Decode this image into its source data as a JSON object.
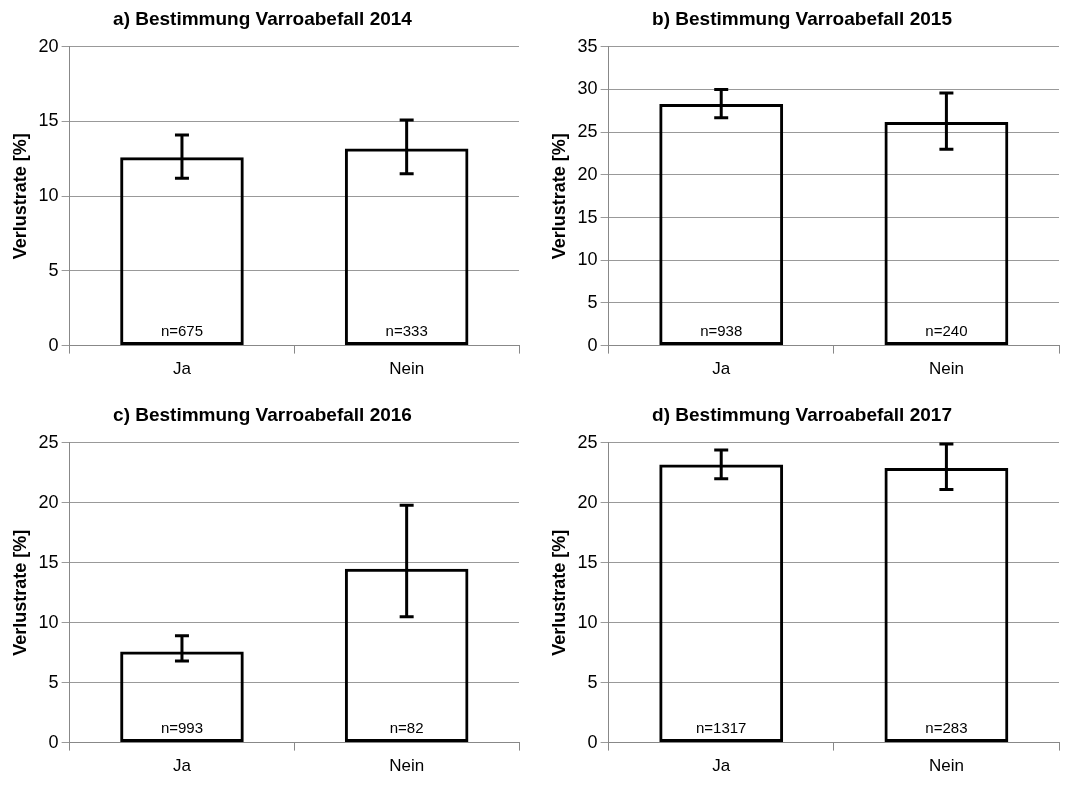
{
  "chart_data": [
    {
      "type": "bar",
      "title": "a) Bestimmung Varroabefall 2014",
      "ylabel": "Verlustrate [%]",
      "categories": [
        "Ja",
        "Nein"
      ],
      "values": [
        12.6,
        13.2
      ],
      "errors": [
        [
          11.2,
          14.1
        ],
        [
          11.5,
          15.1
        ]
      ],
      "color": "#000000",
      "ylim": [
        0,
        20
      ],
      "yticks": [
        0,
        5,
        10,
        15,
        20
      ],
      "grid": "y",
      "legend": false,
      "annotations": [
        {
          "text": "n=675",
          "x": "Ja",
          "y": 0
        },
        {
          "text": "n=333",
          "x": "Nein",
          "y": 0
        }
      ]
    },
    {
      "type": "bar",
      "title": "b) Bestimmung Varroabefall 2015",
      "ylabel": "Verlustrate [%]",
      "categories": [
        "Ja",
        "Nein"
      ],
      "values": [
        28.3,
        26.2
      ],
      "errors": [
        [
          26.7,
          30.0
        ],
        [
          23.0,
          29.6
        ]
      ],
      "color": "#000000",
      "ylim": [
        0,
        35
      ],
      "yticks": [
        0,
        5,
        10,
        15,
        20,
        25,
        30,
        35
      ],
      "grid": "y",
      "legend": false,
      "annotations": [
        {
          "text": "n=938",
          "x": "Ja",
          "y": 0
        },
        {
          "text": "n=240",
          "x": "Nein",
          "y": 0
        }
      ]
    },
    {
      "type": "bar",
      "title": "c) Bestimmung Varroabefall 2016",
      "ylabel": "Verlustrate [%]",
      "categories": [
        "Ja",
        "Nein"
      ],
      "values": [
        7.6,
        14.5
      ],
      "errors": [
        [
          6.8,
          8.9
        ],
        [
          10.5,
          19.8
        ]
      ],
      "color": "#000000",
      "ylim": [
        0,
        25
      ],
      "yticks": [
        0,
        5,
        10,
        15,
        20,
        25
      ],
      "grid": "y",
      "legend": false,
      "annotations": [
        {
          "text": "n=993",
          "x": "Ja",
          "y": 0
        },
        {
          "text": "n=82",
          "x": "Nein",
          "y": 0
        }
      ]
    },
    {
      "type": "bar",
      "title": "d) Bestimmung Varroabefall 2017",
      "ylabel": "Verlustrate [%]",
      "categories": [
        "Ja",
        "Nein"
      ],
      "values": [
        23.2,
        22.9
      ],
      "errors": [
        [
          22.0,
          24.4
        ],
        [
          21.1,
          24.9
        ]
      ],
      "color": "#000000",
      "ylim": [
        0,
        25
      ],
      "yticks": [
        0,
        5,
        10,
        15,
        20,
        25
      ],
      "grid": "y",
      "legend": false,
      "annotations": [
        {
          "text": "n=1317",
          "x": "Ja",
          "y": 0
        },
        {
          "text": "n=283",
          "x": "Nein",
          "y": 0
        }
      ]
    }
  ]
}
